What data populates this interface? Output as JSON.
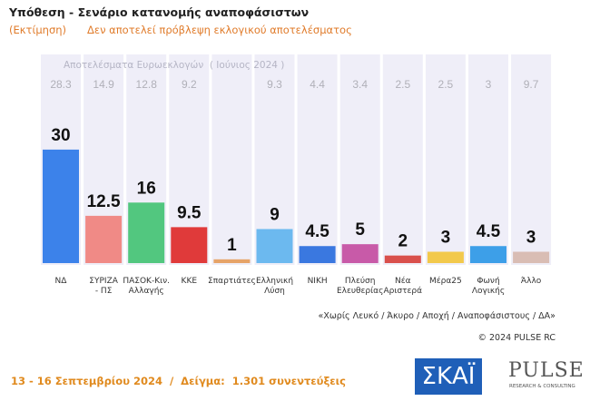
{
  "chart_data": {
    "type": "bar",
    "title": "Υπόθεση - Σενάριο κατανομής αναποφάσιστων",
    "subtitle": "(Εκτίμηση)",
    "disclaimer": "Δεν αποτελεί πρόβλεψη εκλογικού αποτελέσματος",
    "categories": [
      "ΝΔ",
      "ΣΥΡΙΖΑ\n- ΠΣ",
      "ΠΑΣΟΚ-Κιν.\nΑλλαγής",
      "ΚΚΕ",
      "Σπαρτιάτες",
      "Ελληνική\nΛύση",
      "ΝΙΚΗ",
      "Πλεύση\nΕλευθερίας",
      "Νέα\nΑριστερά",
      "Μέρα25",
      "Φωνή\nΛογικής",
      "Άλλο"
    ],
    "values": [
      30,
      12.5,
      16,
      9.5,
      1,
      9,
      4.5,
      5,
      2,
      3,
      4.5,
      3
    ],
    "colors": [
      "#3c82ea",
      "#f08a86",
      "#52c77f",
      "#e03a3a",
      "#e6a468",
      "#6cb9ef",
      "#3a78e0",
      "#c85aa8",
      "#d9504c",
      "#f2c94c",
      "#3d9fe8",
      "#d9bdb4"
    ],
    "euro_results": {
      "title": "Αποτελέσματα Ευρωεκλογών  ( Ιούνιος 2024 )",
      "values": [
        28.3,
        14.9,
        12.8,
        9.2,
        null,
        9.3,
        4.4,
        3.4,
        2.5,
        2.5,
        3,
        9.7
      ]
    },
    "note": "«Χωρίς Λευκό / Άκυρο / Αποχή / Αναποφάσιστους / ΔΑ»",
    "copyright": "© 2024 PULSE RC",
    "footer": "13 - 16 Σεπτεμβρίου 2024  /  Δείγμα:  1.301 συνεντεύξεις",
    "logos": {
      "skai": "ΣΚΑΪ",
      "pulse": "PULSE",
      "pulse_tagline": "RESEARCH & CONSULTING"
    }
  }
}
